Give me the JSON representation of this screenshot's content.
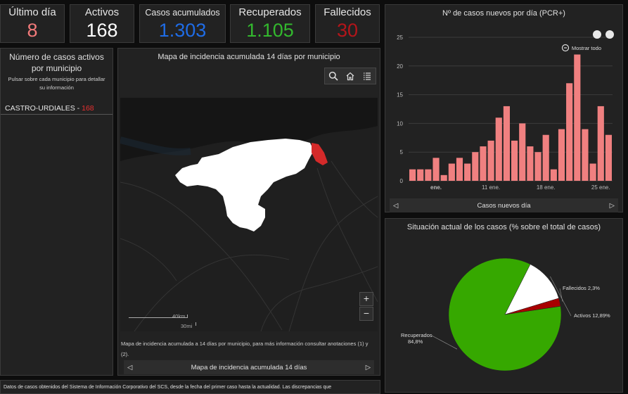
{
  "stats": [
    {
      "label": "Último día",
      "value": "8",
      "color": "#f27a7a"
    },
    {
      "label": "Activos",
      "value": "168",
      "color": "#ffffff"
    },
    {
      "label": "Casos acumulados",
      "value": "1.303",
      "color": "#1f6ce6"
    },
    {
      "label": "Recuperados",
      "value": "1.105",
      "color": "#33b82e"
    },
    {
      "label": "Fallecidos",
      "value": "30",
      "color": "#b3151a"
    }
  ],
  "active_list": {
    "title": "Número de casos activos por municipio",
    "subtitle": "Pulsar sobre cada municipio para detallar su información",
    "items": [
      {
        "name": "CASTRO-URDIALES",
        "separator": " - ",
        "value": "168"
      }
    ]
  },
  "map": {
    "title": "Mapa de incidencia acumulada 14 días por municipio",
    "tools": [
      "search-icon",
      "home-icon",
      "list-icon"
    ],
    "zoom_in": "+",
    "zoom_out": "−",
    "scale_km": "40km",
    "scale_mi": "30mi",
    "note": "Mapa de incidencia acumulada a 14 días por municipio, para más información consultar anotaciones (1) y (2).",
    "footer": "Mapa de incidencia acumulada 14 días",
    "highlight_color": "#d42a2a"
  },
  "bar_chart": {
    "title": "Nº de casos nuevos por día (PCR+)",
    "show_all": "Mostrar todo",
    "footer": "Casos nuevos día",
    "chart_data": {
      "type": "bar",
      "values": [
        2,
        2,
        2,
        4,
        1,
        3,
        4,
        3,
        5,
        6,
        7,
        11,
        13,
        7,
        10,
        6,
        5,
        8,
        2,
        9,
        17,
        22,
        9,
        3,
        13,
        8
      ],
      "x_ticks": [
        "ene.",
        "11 ene.",
        "18 ene.",
        "25 ene."
      ],
      "x_tick_positions": [
        3,
        10,
        17,
        24
      ],
      "ylim": [
        0,
        25
      ],
      "y_ticks": [
        0,
        5,
        10,
        15,
        20,
        25
      ],
      "color": "#f08080",
      "grid": true
    }
  },
  "pie_chart": {
    "title": "Situación actual de los casos (% sobre el total de casos)",
    "chart_data": {
      "type": "pie",
      "slices": [
        {
          "label": "Recuperados",
          "value_label": "84,8%",
          "value": 84.8,
          "color": "#36a800"
        },
        {
          "label": "Activos",
          "value_label": "12,89%",
          "value": 12.89,
          "color": "#ffffff"
        },
        {
          "label": "Fallecidos",
          "value_label": "2,3%",
          "value": 2.3,
          "color": "#a80000"
        }
      ]
    }
  },
  "bottom_text": "Datos de casos obtenidos del Sistema de Información Corporativo del SCS, desde la fecha del primer caso hasta la actualidad. Las discrepancias que"
}
